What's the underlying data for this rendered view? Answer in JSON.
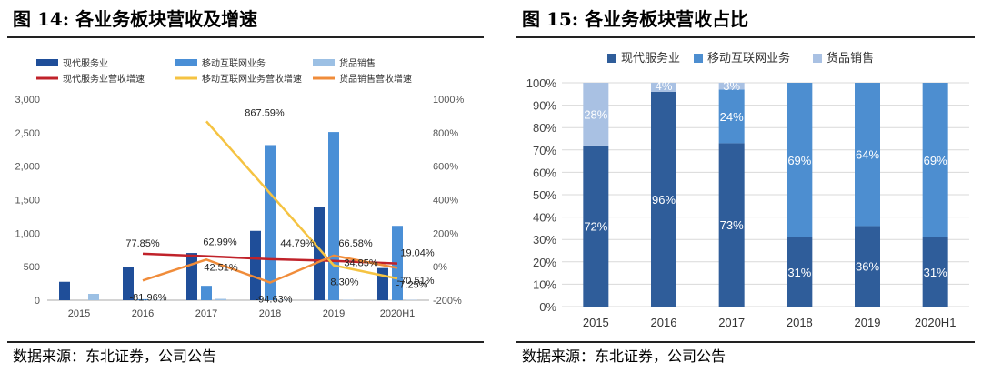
{
  "left": {
    "title": "图 14: 各业务板块营收及增速",
    "source": "数据来源：东北证券，公司公告"
  },
  "right": {
    "title": "图 15: 各业务板块营收占比",
    "source": "数据来源：东北证券，公司公告"
  },
  "chart_data": [
    {
      "type": "bar",
      "title": "",
      "categories": [
        "2015",
        "2016",
        "2017",
        "2018",
        "2019",
        "2020H1"
      ],
      "ylim": [
        0,
        3000
      ],
      "y_ticks": [
        "0",
        "500",
        "1,000",
        "1,500",
        "2,000",
        "2,500",
        "3,000"
      ],
      "y2lim": [
        -200,
        1000
      ],
      "y2_ticks": [
        "-200%",
        "0%",
        "200%",
        "400%",
        "600%",
        "800%",
        "1000%"
      ],
      "grid": false,
      "legend_position": "top",
      "series": [
        {
          "name": "现代服务业",
          "kind": "bar",
          "axis": "left",
          "color": "#1f4e99",
          "values": [
            275,
            495,
            705,
            1035,
            1395,
            480
          ]
        },
        {
          "name": "移动互联网业务",
          "kind": "bar",
          "axis": "left",
          "color": "#4a8fd6",
          "values": [
            0,
            15,
            215,
            2315,
            2510,
            1110
          ]
        },
        {
          "name": "货品销售",
          "kind": "bar",
          "axis": "left",
          "color": "#9cc0e4",
          "values": [
            95,
            5,
            20,
            5,
            5,
            5
          ]
        },
        {
          "name": "现代服务业营收增速",
          "kind": "line",
          "axis": "right",
          "color": "#c0222a",
          "values": [
            null,
            77.85,
            62.99,
            44.79,
            34.85,
            19.04
          ]
        },
        {
          "name": "移动互联网业务营收增速",
          "kind": "line",
          "axis": "right",
          "color": "#f5c342",
          "values": [
            null,
            null,
            867.59,
            null,
            8.3,
            -70.51
          ]
        },
        {
          "name": "货品销售营收增速",
          "kind": "line",
          "axis": "right",
          "color": "#f08c3a",
          "values": [
            null,
            -81.96,
            42.51,
            -94.63,
            66.58,
            -7.25
          ]
        }
      ],
      "annotations": [
        {
          "text": "77.85%",
          "x": "2016",
          "y": 77.85
        },
        {
          "text": "-81.96%",
          "x": "2016",
          "y": -81.96
        },
        {
          "text": "62.99%",
          "x": "2017",
          "y": 62.99
        },
        {
          "text": "42.51%",
          "x": "2017",
          "y": 42.51
        },
        {
          "text": "867.59%",
          "x": "2018",
          "y": 867.59
        },
        {
          "text": "44.79%",
          "x": "2018",
          "y": 44.79
        },
        {
          "text": "-94.63%",
          "x": "2018",
          "y": -94.63
        },
        {
          "text": "66.58%",
          "x": "2019",
          "y": 66.58
        },
        {
          "text": "34.85%",
          "x": "2019",
          "y": 34.85
        },
        {
          "text": "8.30%",
          "x": "2019",
          "y": 8.3
        },
        {
          "text": "19.04%",
          "x": "2020H1",
          "y": 19.04
        },
        {
          "text": "-70.51%",
          "x": "2020H1",
          "y": -70.51
        },
        {
          "text": "-7.25%",
          "x": "2020H1",
          "y": -7.25
        }
      ]
    },
    {
      "type": "bar",
      "stacked": true,
      "title": "",
      "categories": [
        "2015",
        "2016",
        "2017",
        "2018",
        "2019",
        "2020H1"
      ],
      "ylim": [
        0,
        100
      ],
      "y_ticks": [
        "0%",
        "10%",
        "20%",
        "30%",
        "40%",
        "50%",
        "60%",
        "70%",
        "80%",
        "90%",
        "100%"
      ],
      "grid": true,
      "legend_position": "top",
      "series": [
        {
          "name": "现代服务业",
          "color": "#2f5d9a",
          "values": [
            72,
            96,
            73,
            31,
            36,
            31
          ],
          "labels": [
            "72%",
            "96%",
            "73%",
            "31%",
            "36%",
            "31%"
          ]
        },
        {
          "name": "移动互联网业务",
          "color": "#4d8ed0",
          "values": [
            0,
            0,
            24,
            69,
            64,
            69
          ],
          "labels": [
            "",
            "",
            "24%",
            "69%",
            "64%",
            "69%"
          ]
        },
        {
          "name": "货品销售",
          "color": "#a9c1e3",
          "values": [
            28,
            4,
            3,
            0,
            0,
            0
          ],
          "labels": [
            "28%",
            "4%",
            "3%",
            "",
            "",
            ""
          ]
        }
      ]
    }
  ]
}
